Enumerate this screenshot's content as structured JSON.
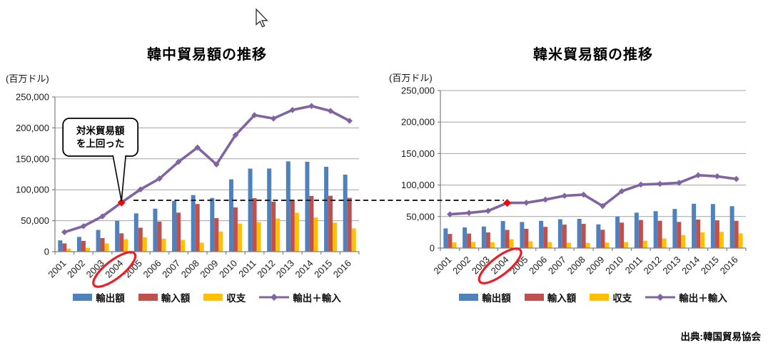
{
  "page": {
    "source": "出典:韓国貿易協会",
    "connector": {
      "style": "dashed",
      "links": "2004 totals of both charts"
    }
  },
  "chart_data": [
    {
      "id": "korea-china-trade",
      "type": "bar-line-combo",
      "title": "韓中貿易額の推移",
      "unit": "(百万ドル)",
      "legend_position": "bottom",
      "grid": true,
      "ylim": [
        0,
        250000
      ],
      "ytick_step": 50000,
      "categories": [
        "2001",
        "2002",
        "2003",
        "2004",
        "2005",
        "2006",
        "2007",
        "2008",
        "2009",
        "2010",
        "2011",
        "2012",
        "2013",
        "2014",
        "2015",
        "2016"
      ],
      "series": [
        {
          "key": "exports",
          "name": "輸出額",
          "type": "bar",
          "color": "#4F81BD",
          "values": [
            18190,
            23754,
            35110,
            49763,
            61915,
            69459,
            81985,
            91389,
            86703,
            116838,
            134185,
            134323,
            145869,
            145288,
            137124,
            124433
          ]
        },
        {
          "key": "imports",
          "name": "輸入額",
          "type": "bar",
          "color": "#C0504D",
          "values": [
            13303,
            17400,
            21909,
            29585,
            38648,
            48557,
            63028,
            76930,
            54246,
            71574,
            86432,
            80785,
            83053,
            90082,
            90250,
            86980
          ]
        },
        {
          "key": "balance",
          "name": "収支",
          "type": "bar",
          "color": "#FFC000",
          "values": [
            4887,
            6354,
            13201,
            20178,
            23267,
            20902,
            18957,
            14459,
            32457,
            45264,
            47753,
            53538,
            62816,
            55206,
            46874,
            37453
          ]
        },
        {
          "key": "total",
          "name": "輸出＋輸入",
          "type": "line",
          "color": "#8064A2",
          "values": [
            31493,
            41154,
            57019,
            79348,
            100563,
            118016,
            145013,
            168319,
            140949,
            188412,
            220617,
            215108,
            228922,
            235370,
            227374,
            211413
          ]
        }
      ],
      "highlight": {
        "year": "2004",
        "series": "total",
        "marker_color": "#FF0000"
      },
      "circled_year": "2004",
      "circle_color": "#ED1C24",
      "annotation": {
        "lines": [
          "対米貿易額",
          "を上回った"
        ],
        "points_to_year": "2004"
      }
    },
    {
      "id": "korea-us-trade",
      "type": "bar-line-combo",
      "title": "韓米貿易額の推移",
      "unit": "(百万ドル)",
      "legend_position": "bottom",
      "grid": true,
      "ylim": [
        0,
        250000
      ],
      "ytick_step": 50000,
      "categories": [
        "2001",
        "2002",
        "2003",
        "2004",
        "2005",
        "2006",
        "2007",
        "2008",
        "2009",
        "2010",
        "2011",
        "2012",
        "2013",
        "2014",
        "2015",
        "2016"
      ],
      "series": [
        {
          "key": "exports",
          "name": "輸出額",
          "type": "bar",
          "color": "#4F81BD",
          "values": [
            31211,
            32780,
            34219,
            42849,
            41343,
            43184,
            45766,
            46377,
            37650,
            49816,
            56208,
            58525,
            62052,
            70285,
            69832,
            66462
          ]
        },
        {
          "key": "imports",
          "name": "輸入額",
          "type": "bar",
          "color": "#C0504D",
          "values": [
            22376,
            23009,
            24814,
            28783,
            30586,
            33654,
            37219,
            38365,
            29039,
            40403,
            44569,
            43341,
            41512,
            45283,
            44024,
            43216
          ]
        },
        {
          "key": "balance",
          "name": "収支",
          "type": "bar",
          "color": "#FFC000",
          "values": [
            8835,
            9771,
            9405,
            14066,
            10757,
            9530,
            8547,
            8012,
            8611,
            9413,
            11639,
            15184,
            20540,
            25002,
            25808,
            23246
          ]
        },
        {
          "key": "total",
          "name": "輸出＋輸入",
          "type": "line",
          "color": "#8064A2",
          "values": [
            53587,
            55789,
            59033,
            71632,
            71929,
            76838,
            82985,
            84742,
            66689,
            90219,
            100777,
            101866,
            103564,
            115568,
            113856,
            109678
          ]
        }
      ],
      "highlight": {
        "year": "2004",
        "series": "total",
        "marker_color": "#FF0000"
      },
      "circled_year": "2004",
      "circle_color": "#ED1C24"
    }
  ]
}
